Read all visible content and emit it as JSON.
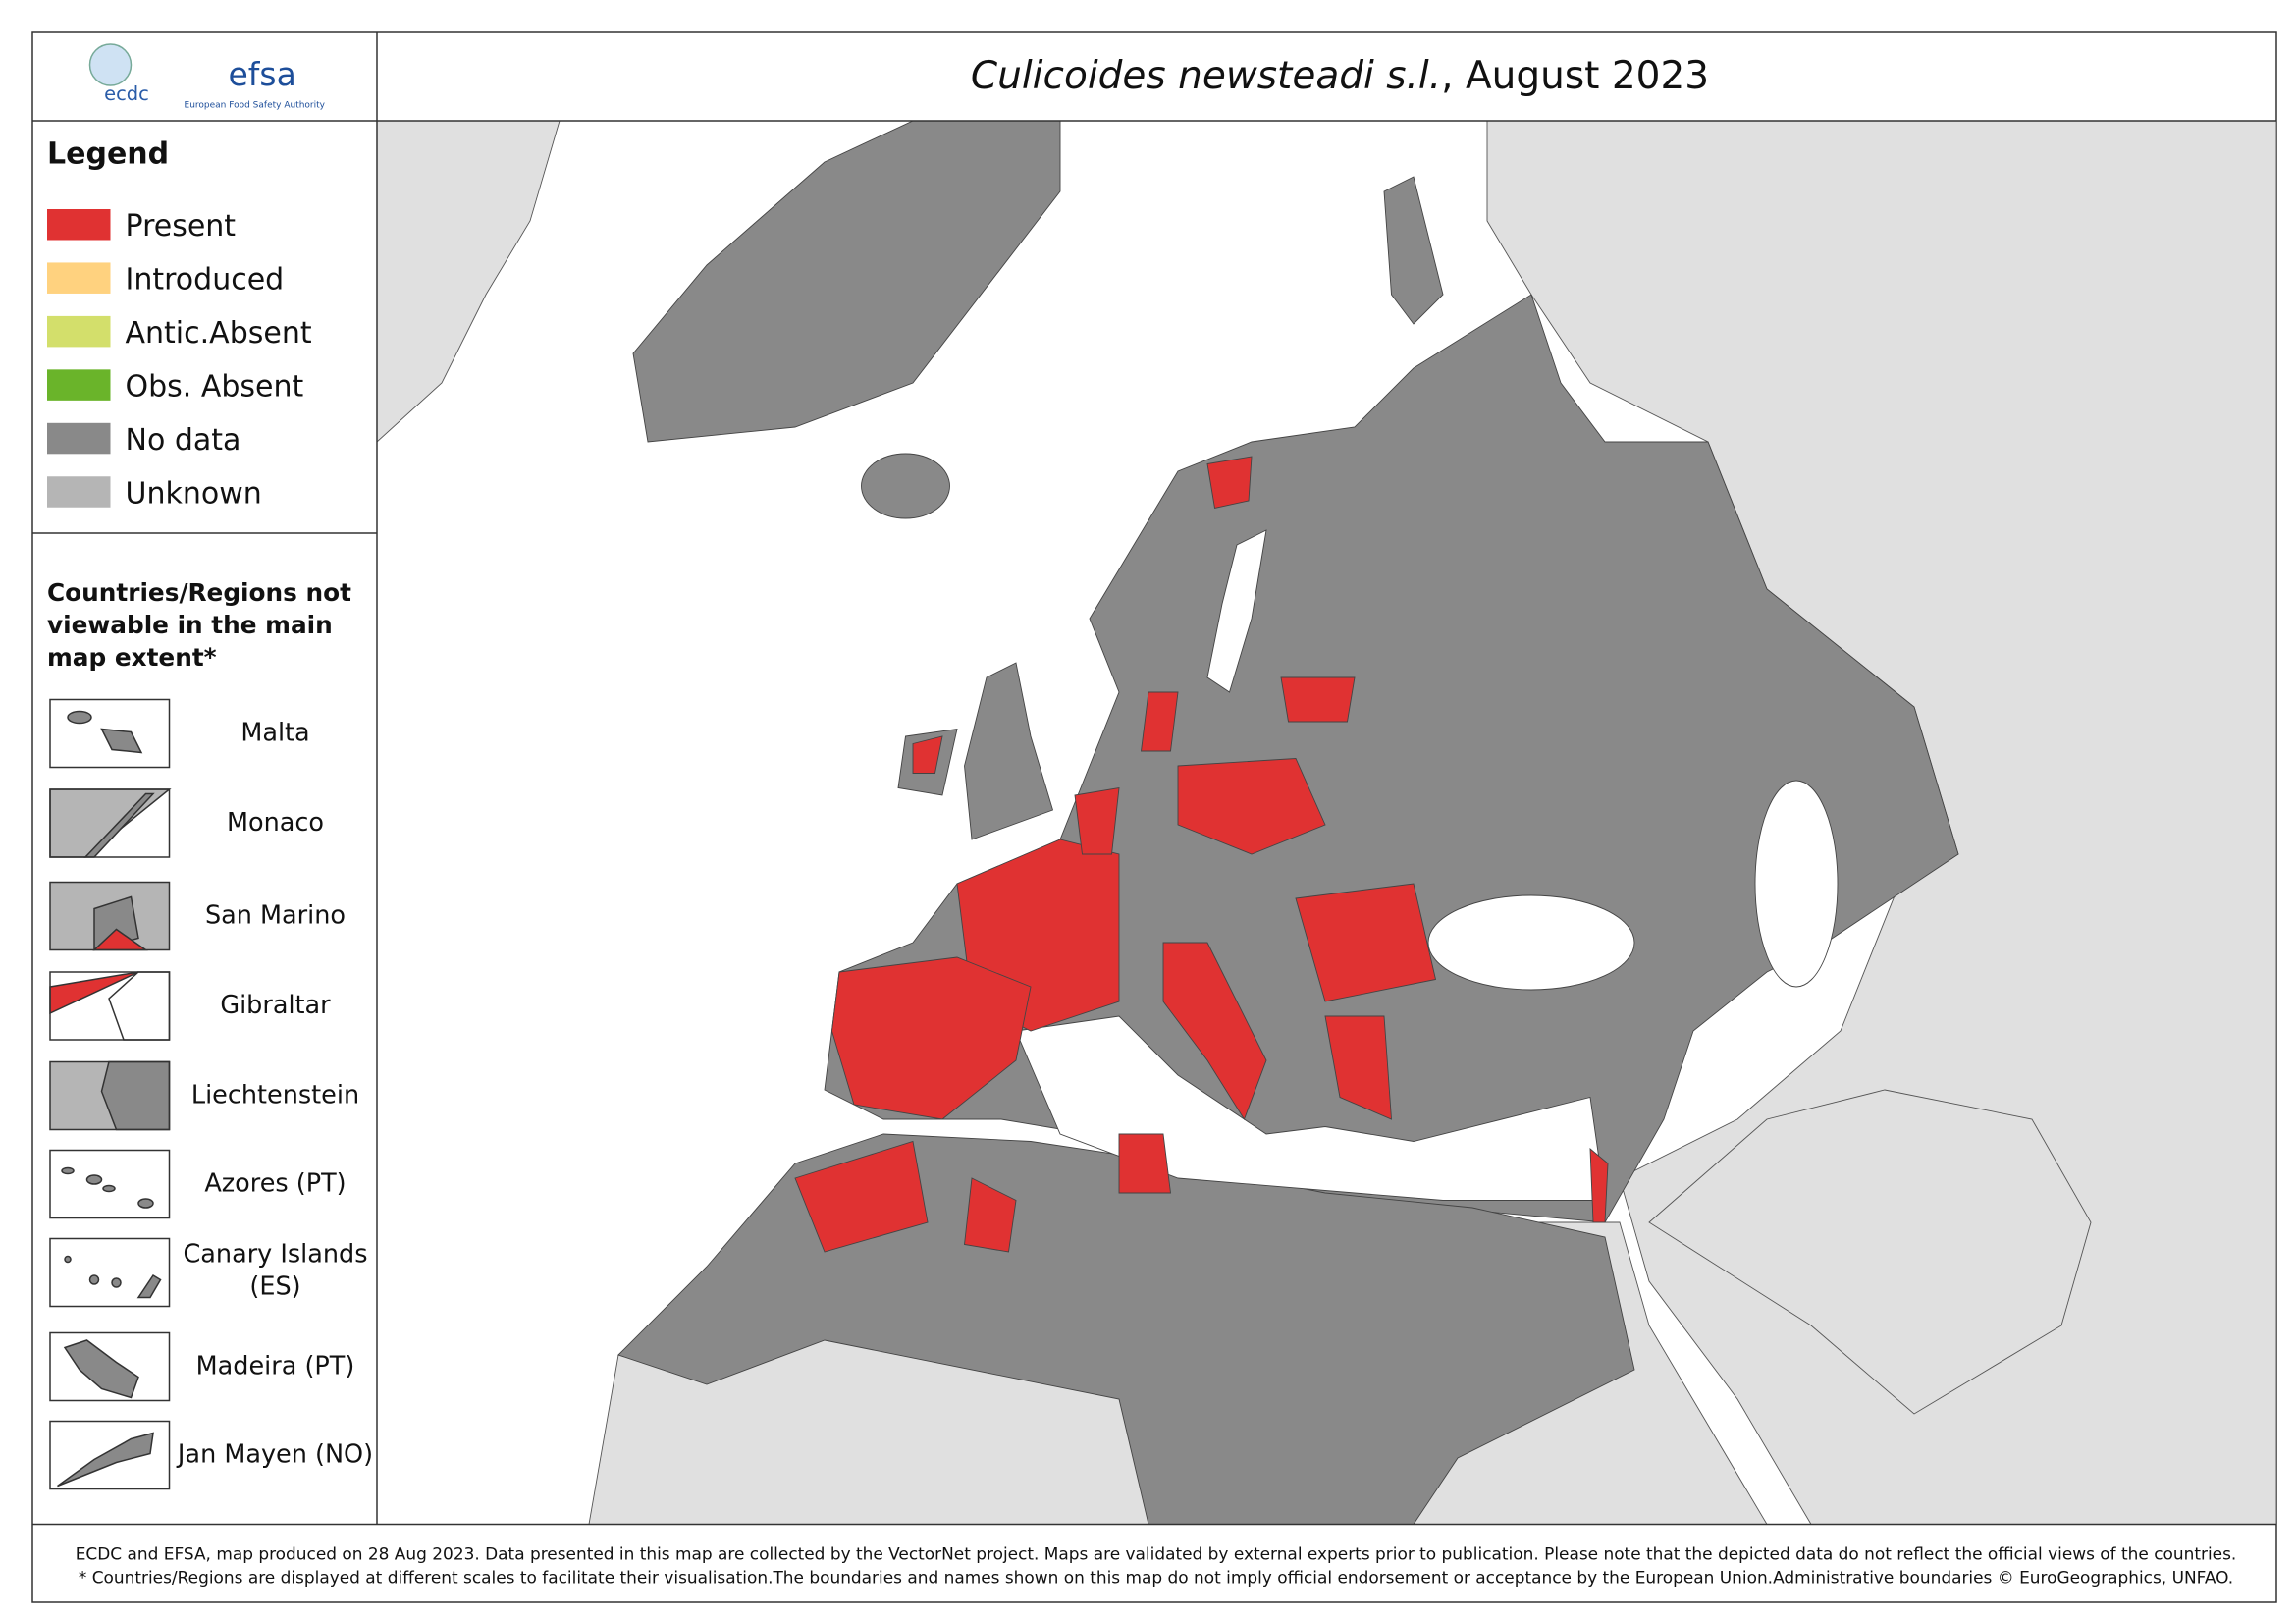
{
  "header": {
    "logo_ecdc": "ecdc",
    "logo_efsa": "efsa",
    "logo_efsa_sub": "European Food Safety Authority",
    "title_italic": "Culicoides newsteadi s.l.",
    "title_rest": ", August 2023"
  },
  "legend": {
    "title": "Legend",
    "items": [
      {
        "label": "Present",
        "color": "#e03232"
      },
      {
        "label": "Introduced",
        "color": "#ffd27f"
      },
      {
        "label": "Antic.Absent",
        "color": "#d3df6b"
      },
      {
        "label": "Obs. Absent",
        "color": "#6ab42a"
      },
      {
        "label": "No data",
        "color": "#898989"
      },
      {
        "label": "Unknown",
        "color": "#b5b5b5"
      }
    ]
  },
  "insets": {
    "title": "Countries/Regions not viewable in the main map extent*",
    "items": [
      {
        "label": "Malta"
      },
      {
        "label": "Monaco"
      },
      {
        "label": "San Marino"
      },
      {
        "label": "Gibraltar"
      },
      {
        "label": "Liechtenstein"
      },
      {
        "label": "Azores (PT)"
      },
      {
        "label": "Canary Islands (ES)"
      },
      {
        "label": "Madeira (PT)"
      },
      {
        "label": "Jan Mayen (NO)"
      }
    ]
  },
  "footer": {
    "line1": "ECDC and EFSA, map produced on 28 Aug 2023. Data presented in this map are collected by the VectorNet project. Maps are validated by external experts prior to publication. Please note that the depicted data do not reflect the official views of the countries.",
    "line2": "* Countries/Regions are displayed at different scales to facilitate their visualisation.The boundaries and names shown on this map do not imply official endorsement or acceptance by the European Union.Administrative boundaries © EuroGeographics, UNFAO."
  }
}
